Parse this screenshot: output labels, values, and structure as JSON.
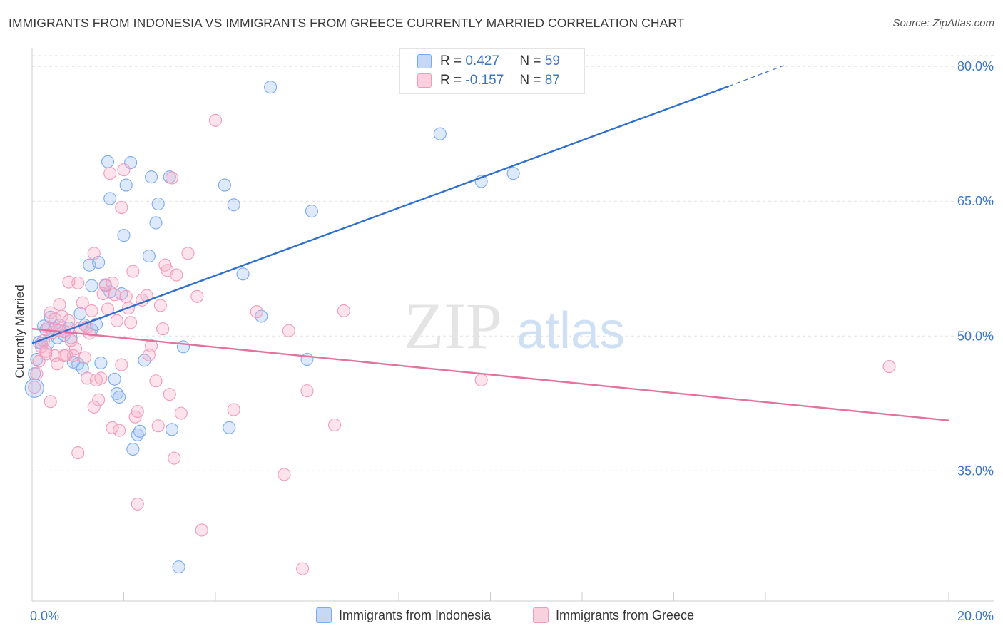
{
  "title": "IMMIGRANTS FROM INDONESIA VS IMMIGRANTS FROM GREECE CURRENTLY MARRIED CORRELATION CHART",
  "source": "Source: ZipAtlas.com",
  "watermark": {
    "zip": "ZIP",
    "atlas": "atlas"
  },
  "legend": [
    {
      "r_label": "R =",
      "r_value": "0.427",
      "n_label": "N =",
      "n_value": "59",
      "color": "#7aaaf0"
    },
    {
      "r_label": "R =",
      "r_value": "-0.157",
      "n_label": "N =",
      "n_value": "87",
      "color": "#f39ab8"
    }
  ],
  "chart_data": {
    "type": "scatter",
    "title": "IMMIGRANTS FROM INDONESIA VS IMMIGRANTS FROM GREECE CURRENTLY MARRIED CORRELATION CHART",
    "xlabel": "",
    "ylabel": "Currently Married",
    "xlim": [
      0,
      20
    ],
    "ylim": [
      20.5,
      82
    ],
    "x_tick_labels": [
      "0.0%",
      "20.0%"
    ],
    "y_ticks": [
      35,
      50,
      65,
      80
    ],
    "y_tick_labels": [
      "35.0%",
      "50.0%",
      "65.0%",
      "80.0%"
    ],
    "series": [
      {
        "name": "Immigrants from Indonesia",
        "color": "#7aaaf0",
        "trend": {
          "x0": 0.0,
          "y0": 49.2,
          "x1": 15.2,
          "y1": 77.8,
          "dash_to_x": 16.4,
          "dash_to_y": 80.1
        },
        "points": [
          [
            0.05,
            45.8
          ],
          [
            0.1,
            47.4
          ],
          [
            0.15,
            49.3
          ],
          [
            0.25,
            51.1
          ],
          [
            0.35,
            49.2
          ],
          [
            0.4,
            52.1
          ],
          [
            0.5,
            50.8
          ],
          [
            0.6,
            51.2
          ],
          [
            0.55,
            49.8
          ],
          [
            0.7,
            50.1
          ],
          [
            0.8,
            50.9
          ],
          [
            0.85,
            49.8
          ],
          [
            0.9,
            47.1
          ],
          [
            1.0,
            46.9
          ],
          [
            1.1,
            46.4
          ],
          [
            1.05,
            52.5
          ],
          [
            1.15,
            51.2
          ],
          [
            1.25,
            57.9
          ],
          [
            1.3,
            55.6
          ],
          [
            1.3,
            50.7
          ],
          [
            1.4,
            51.3
          ],
          [
            1.45,
            58.2
          ],
          [
            1.6,
            55.6
          ],
          [
            1.5,
            47.0
          ],
          [
            1.65,
            69.4
          ],
          [
            1.7,
            65.3
          ],
          [
            1.7,
            54.9
          ],
          [
            1.8,
            45.2
          ],
          [
            1.85,
            43.6
          ],
          [
            1.9,
            43.2
          ],
          [
            1.95,
            54.7
          ],
          [
            2.0,
            61.2
          ],
          [
            2.05,
            66.8
          ],
          [
            2.15,
            69.3
          ],
          [
            2.2,
            37.4
          ],
          [
            2.3,
            39.0
          ],
          [
            2.35,
            39.4
          ],
          [
            2.45,
            47.3
          ],
          [
            2.55,
            58.9
          ],
          [
            2.6,
            67.7
          ],
          [
            2.7,
            62.6
          ],
          [
            2.75,
            64.7
          ],
          [
            3.0,
            67.7
          ],
          [
            3.05,
            39.6
          ],
          [
            3.2,
            24.3
          ],
          [
            3.3,
            48.8
          ],
          [
            4.2,
            66.8
          ],
          [
            4.3,
            39.8
          ],
          [
            4.4,
            64.6
          ],
          [
            4.6,
            56.9
          ],
          [
            5.0,
            52.2
          ],
          [
            5.2,
            77.7
          ],
          [
            6.0,
            47.4
          ],
          [
            6.1,
            63.9
          ],
          [
            8.9,
            72.5
          ],
          [
            9.8,
            67.2
          ],
          [
            10.5,
            68.1
          ],
          [
            0.2,
            49.2
          ],
          [
            0.3,
            50.7
          ]
        ]
      },
      {
        "name": "Immigrants from Greece",
        "color": "#f39ab8",
        "trend": {
          "x0": 0.0,
          "y0": 50.8,
          "x1": 20.0,
          "y1": 40.6
        },
        "points": [
          [
            0.05,
            44.3
          ],
          [
            0.1,
            45.8
          ],
          [
            0.15,
            47.2
          ],
          [
            0.2,
            48.8
          ],
          [
            0.25,
            49.5
          ],
          [
            0.3,
            48.0
          ],
          [
            0.35,
            51.0
          ],
          [
            0.4,
            52.6
          ],
          [
            0.45,
            50.4
          ],
          [
            0.5,
            47.8
          ],
          [
            0.55,
            46.9
          ],
          [
            0.6,
            53.5
          ],
          [
            0.65,
            52.2
          ],
          [
            0.7,
            50.5
          ],
          [
            0.75,
            47.9
          ],
          [
            0.8,
            51.7
          ],
          [
            0.85,
            49.5
          ],
          [
            0.9,
            47.8
          ],
          [
            0.95,
            48.6
          ],
          [
            1.0,
            55.9
          ],
          [
            1.05,
            50.9
          ],
          [
            1.1,
            53.7
          ],
          [
            1.15,
            47.6
          ],
          [
            1.2,
            45.3
          ],
          [
            1.25,
            50.3
          ],
          [
            1.3,
            52.8
          ],
          [
            1.35,
            42.1
          ],
          [
            1.4,
            45.1
          ],
          [
            1.45,
            42.9
          ],
          [
            1.5,
            45.3
          ],
          [
            1.55,
            54.7
          ],
          [
            1.6,
            55.7
          ],
          [
            1.65,
            53.0
          ],
          [
            1.7,
            68.1
          ],
          [
            1.75,
            55.9
          ],
          [
            1.8,
            54.6
          ],
          [
            1.85,
            51.7
          ],
          [
            1.9,
            39.5
          ],
          [
            1.95,
            46.8
          ],
          [
            2.0,
            68.5
          ],
          [
            2.05,
            54.4
          ],
          [
            2.1,
            53.1
          ],
          [
            2.15,
            51.5
          ],
          [
            2.2,
            57.2
          ],
          [
            2.25,
            41.0
          ],
          [
            2.3,
            41.6
          ],
          [
            2.4,
            54.0
          ],
          [
            2.5,
            54.5
          ],
          [
            2.55,
            47.9
          ],
          [
            2.6,
            48.9
          ],
          [
            2.7,
            45.0
          ],
          [
            2.75,
            40.0
          ],
          [
            2.8,
            53.4
          ],
          [
            2.85,
            50.8
          ],
          [
            2.9,
            57.9
          ],
          [
            2.95,
            57.3
          ],
          [
            3.0,
            43.5
          ],
          [
            3.05,
            67.6
          ],
          [
            3.1,
            36.4
          ],
          [
            3.15,
            56.8
          ],
          [
            3.25,
            41.4
          ],
          [
            3.4,
            59.2
          ],
          [
            3.6,
            54.4
          ],
          [
            3.7,
            28.4
          ],
          [
            4.0,
            74.0
          ],
          [
            4.4,
            41.8
          ],
          [
            4.9,
            52.7
          ],
          [
            5.5,
            34.6
          ],
          [
            5.6,
            50.6
          ],
          [
            5.9,
            24.1
          ],
          [
            6.0,
            43.9
          ],
          [
            6.6,
            40.1
          ],
          [
            6.8,
            52.8
          ],
          [
            9.8,
            45.1
          ],
          [
            18.7,
            46.6
          ],
          [
            1.0,
            37.0
          ],
          [
            0.4,
            42.7
          ],
          [
            0.3,
            48.3
          ],
          [
            0.6,
            50.6
          ],
          [
            0.7,
            47.8
          ],
          [
            1.35,
            59.2
          ],
          [
            1.75,
            39.8
          ],
          [
            1.95,
            64.3
          ],
          [
            2.3,
            31.3
          ],
          [
            0.8,
            56.0
          ],
          [
            1.2,
            51.0
          ],
          [
            0.5,
            51.9
          ]
        ]
      }
    ]
  },
  "bottom_legend": [
    {
      "label": "Immigrants from Indonesia",
      "color": "#7aaaf0"
    },
    {
      "label": "Immigrants from Greece",
      "color": "#f39ab8"
    }
  ]
}
